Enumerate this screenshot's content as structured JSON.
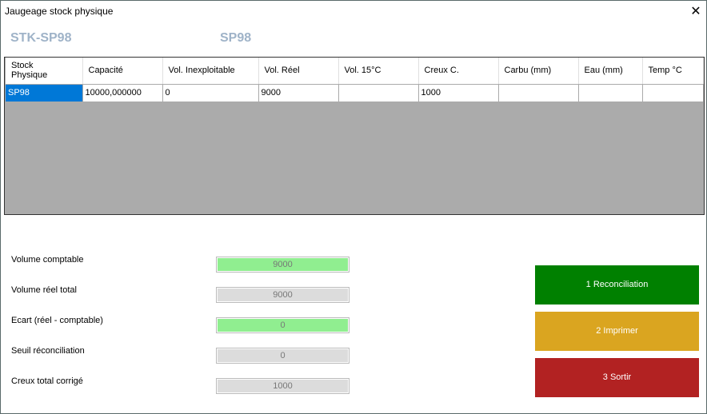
{
  "window": {
    "title": "Jaugeage stock physique",
    "close_icon": "close-icon"
  },
  "header": {
    "code": "STK-SP98",
    "product": "SP98"
  },
  "table": {
    "columns": [
      "Stock\nPhysique",
      "Capacité",
      "Vol. Inexploitable",
      "Vol. Réel",
      "Vol. 15°C",
      "Creux C.",
      "Carbu (mm)",
      "Eau (mm)",
      "Temp °C"
    ],
    "rows": [
      [
        "SP98",
        "10000,000000",
        "0",
        "9000",
        "",
        "1000",
        "",
        "",
        ""
      ]
    ]
  },
  "summary": [
    {
      "label": "Volume comptable",
      "value": "9000",
      "color": "#90ee90"
    },
    {
      "label": "Volume réel total",
      "value": "9000",
      "color": "#dcdcdc"
    },
    {
      "label": "Ecart (réel - comptable)",
      "value": "0",
      "color": "#90ee90"
    },
    {
      "label": "Seuil réconciliation",
      "value": "0",
      "color": "#dcdcdc"
    },
    {
      "label": "Creux total corrigé",
      "value": "1000",
      "color": "#dcdcdc"
    }
  ],
  "buttons": [
    {
      "label": "1 Reconciliation",
      "color": "#008000"
    },
    {
      "label": "2 Imprimer",
      "color": "#daa520"
    },
    {
      "label": "3 Sortir",
      "color": "#b22222"
    }
  ]
}
